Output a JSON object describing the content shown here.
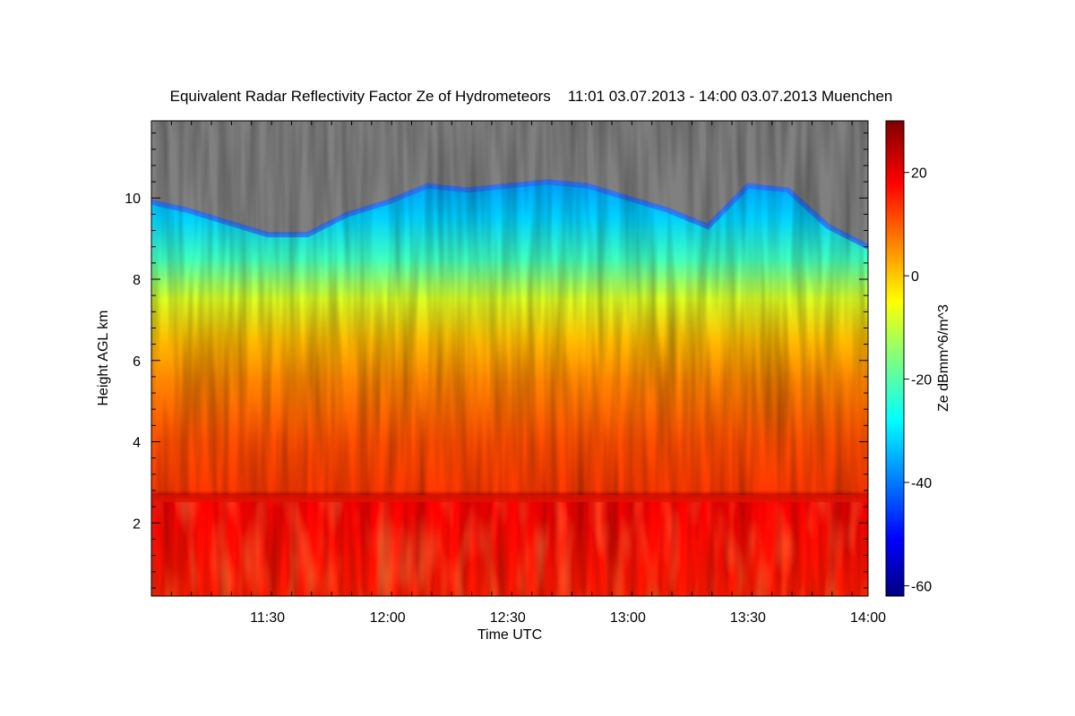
{
  "chart_data": {
    "type": "heatmap",
    "title": "Equivalent Radar Reflectivity Factor Ze of Hydrometeors    11:01 03.07.2013 - 14:00 03.07.2013 Muenchen",
    "xlabel": "Time UTC",
    "ylabel": "Height AGL km",
    "colorbar_label": "Ze dBmm^6/m^3",
    "x_ticks": [
      "11:30",
      "12:00",
      "12:30",
      "13:00",
      "13:30",
      "14:00"
    ],
    "x_tick_minutes": [
      30,
      60,
      90,
      120,
      150,
      180
    ],
    "xlim_minutes": [
      1,
      180
    ],
    "y_ticks": [
      2,
      4,
      6,
      8,
      10
    ],
    "ylim": [
      0.2,
      11.9
    ],
    "colorbar_ticks": [
      20,
      0,
      -20,
      -40,
      -60
    ],
    "colorbar_range": [
      -62,
      30
    ],
    "no_data_color": "#808080",
    "bright_band_height_km": 2.6,
    "cloud_top_km": [
      {
        "t": 1,
        "h": 9.9
      },
      {
        "t": 10,
        "h": 9.7
      },
      {
        "t": 20,
        "h": 9.4
      },
      {
        "t": 30,
        "h": 9.1
      },
      {
        "t": 40,
        "h": 9.1
      },
      {
        "t": 50,
        "h": 9.6
      },
      {
        "t": 60,
        "h": 9.9
      },
      {
        "t": 70,
        "h": 10.3
      },
      {
        "t": 80,
        "h": 10.2
      },
      {
        "t": 90,
        "h": 10.3
      },
      {
        "t": 100,
        "h": 10.4
      },
      {
        "t": 110,
        "h": 10.3
      },
      {
        "t": 120,
        "h": 10.0
      },
      {
        "t": 130,
        "h": 9.7
      },
      {
        "t": 140,
        "h": 9.3
      },
      {
        "t": 150,
        "h": 10.3
      },
      {
        "t": 160,
        "h": 10.2
      },
      {
        "t": 170,
        "h": 9.3
      },
      {
        "t": 180,
        "h": 8.8
      }
    ],
    "reflectivity_profile": [
      {
        "h_km": 0.3,
        "ze": 16
      },
      {
        "h_km": 2.5,
        "ze": 18
      },
      {
        "h_km": 2.65,
        "ze": 24
      },
      {
        "h_km": 2.8,
        "ze": 13
      },
      {
        "h_km": 4.0,
        "ze": 11
      },
      {
        "h_km": 5.5,
        "ze": 6
      },
      {
        "h_km": 6.5,
        "ze": 1
      },
      {
        "h_km": 7.5,
        "ze": -8
      },
      {
        "h_km": 8.5,
        "ze": -22
      },
      {
        "h_km": 9.5,
        "ze": -32
      },
      {
        "h_km": 10.3,
        "ze": -36
      }
    ]
  }
}
